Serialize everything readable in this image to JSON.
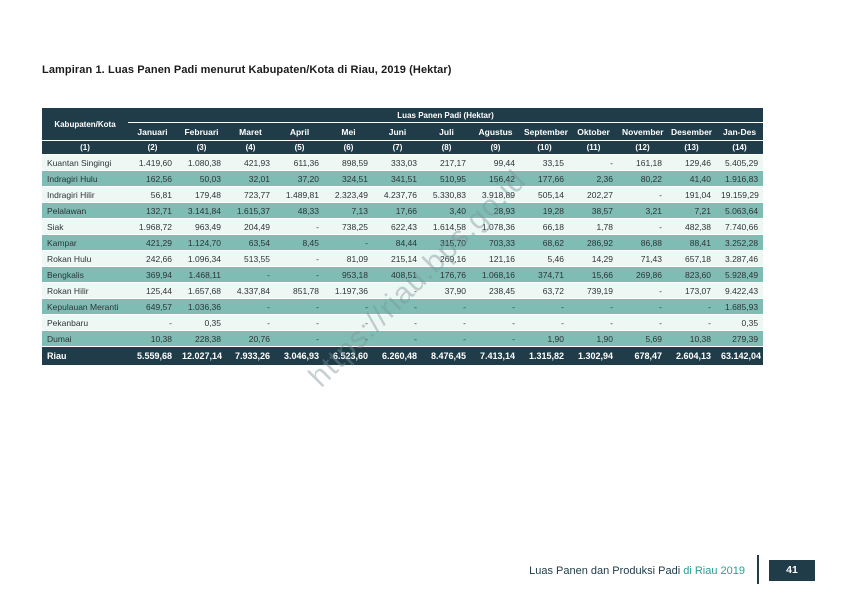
{
  "page": {
    "title": "Lampiran 1. Luas Panen Padi menurut Kabupaten/Kota di Riau, 2019 (Hektar)",
    "watermark": "https://riau.bps.go.id",
    "footer": {
      "text_dark": "Luas Panen dan Produksi Padi ",
      "text_accent": "di Riau 2019",
      "page_number": "41"
    }
  },
  "table": {
    "row_header": "Kabupaten/Kota",
    "group_header": "Luas Panen Padi (Hektar)",
    "columns": [
      "Januari",
      "Februari",
      "Maret",
      "April",
      "Mei",
      "Juni",
      "Juli",
      "Agustus",
      "September",
      "Oktober",
      "November",
      "Desember",
      "Jan-Des"
    ],
    "column_numbers": [
      "(1)",
      "(2)",
      "(3)",
      "(4)",
      "(5)",
      "(6)",
      "(7)",
      "(8)",
      "(9)",
      "(10)",
      "(11)",
      "(12)",
      "(13)",
      "(14)"
    ],
    "rows": [
      {
        "name": "Kuantan Singingi",
        "values": [
          "1.419,60",
          "1.080,38",
          "421,93",
          "611,36",
          "898,59",
          "333,03",
          "217,17",
          "99,44",
          "33,15",
          "-",
          "161,18",
          "129,46",
          "5.405,29"
        ]
      },
      {
        "name": "Indragiri Hulu",
        "values": [
          "162,56",
          "50,03",
          "32,01",
          "37,20",
          "324,51",
          "341,51",
          "510,95",
          "156,42",
          "177,66",
          "2,36",
          "80,22",
          "41,40",
          "1.916,83"
        ]
      },
      {
        "name": "Indragiri Hilir",
        "values": [
          "56,81",
          "179,48",
          "723,77",
          "1.489,81",
          "2.323,49",
          "4.237,76",
          "5.330,83",
          "3.918,89",
          "505,14",
          "202,27",
          "-",
          "191,04",
          "19.159,29"
        ]
      },
      {
        "name": "Pelalawan",
        "values": [
          "132,71",
          "3.141,84",
          "1.615,37",
          "48,33",
          "7,13",
          "17,66",
          "3,40",
          "28,93",
          "19,28",
          "38,57",
          "3,21",
          "7,21",
          "5.063,64"
        ]
      },
      {
        "name": "Siak",
        "values": [
          "1.968,72",
          "963,49",
          "204,49",
          "-",
          "738,25",
          "622,43",
          "1.614,58",
          "1.078,36",
          "66,18",
          "1,78",
          "-",
          "482,38",
          "7.740,66"
        ]
      },
      {
        "name": "Kampar",
        "values": [
          "421,29",
          "1.124,70",
          "63,54",
          "8,45",
          "-",
          "84,44",
          "315,70",
          "703,33",
          "68,62",
          "286,92",
          "86,88",
          "88,41",
          "3.252,28"
        ]
      },
      {
        "name": "Rokan Hulu",
        "values": [
          "242,66",
          "1.096,34",
          "513,55",
          "-",
          "81,09",
          "215,14",
          "269,16",
          "121,16",
          "5,46",
          "14,29",
          "71,43",
          "657,18",
          "3.287,46"
        ]
      },
      {
        "name": "Bengkalis",
        "values": [
          "369,94",
          "1.468,11",
          "-",
          "-",
          "953,18",
          "408,51",
          "176,76",
          "1.068,16",
          "374,71",
          "15,66",
          "269,86",
          "823,60",
          "5.928,49"
        ]
      },
      {
        "name": "Rokan Hilir",
        "values": [
          "125,44",
          "1.657,68",
          "4.337,84",
          "851,78",
          "1.197,36",
          "-",
          "37,90",
          "238,45",
          "63,72",
          "739,19",
          "-",
          "173,07",
          "9.422,43"
        ]
      },
      {
        "name": "Kepulauan Meranti",
        "values": [
          "649,57",
          "1.036,36",
          "-",
          "-",
          "-",
          "-",
          "-",
          "-",
          "-",
          "-",
          "-",
          "-",
          "1.685,93"
        ]
      },
      {
        "name": "Pekanbaru",
        "values": [
          "-",
          "0,35",
          "-",
          "-",
          "-",
          "-",
          "-",
          "-",
          "-",
          "-",
          "-",
          "-",
          "0,35"
        ]
      },
      {
        "name": "Dumai",
        "values": [
          "10,38",
          "228,38",
          "20,76",
          "-",
          "-",
          "-",
          "-",
          "-",
          "1,90",
          "1,90",
          "5,69",
          "10,38",
          "279,39"
        ]
      }
    ],
    "total": {
      "name": "Riau",
      "values": [
        "5.559,68",
        "12.027,14",
        "7.933,26",
        "3.046,93",
        "6.523,60",
        "6.260,48",
        "8.476,45",
        "7.413,14",
        "1.315,82",
        "1.302,94",
        "678,47",
        "2.604,13",
        "63.142,04"
      ]
    }
  },
  "colors": {
    "header_bg": "#203c48",
    "row_alt_bg": "#7fbdb4",
    "row_bg": "#eff7f5",
    "accent": "#2b9e93"
  }
}
